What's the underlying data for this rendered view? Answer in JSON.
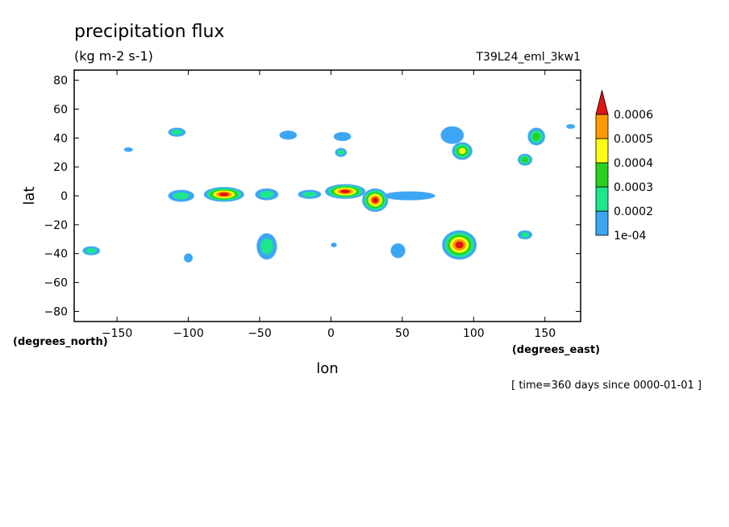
{
  "chart_data": {
    "type": "heatmap",
    "title": "precipitation flux",
    "units": "(kg m-2 s-1)",
    "run_label": "T39L24_eml_3kw1",
    "xlabel": "lon",
    "ylabel": "lat",
    "x_unit_label": "(degrees_east)",
    "y_unit_label": "(degrees_north)",
    "time_label": "[ time=360 days since 0000-01-01 ]",
    "xlim": [
      -180,
      175
    ],
    "ylim": [
      -87,
      87
    ],
    "xticks": [
      -150,
      -100,
      -50,
      0,
      50,
      100,
      150
    ],
    "yticks": [
      -80,
      -60,
      -40,
      -20,
      0,
      20,
      40,
      60,
      80
    ],
    "legend": {
      "placement": "right",
      "levels": [
        "1e-04",
        "0.0002",
        "0.0003",
        "0.0004",
        "0.0005",
        "0.0006"
      ],
      "colors": [
        "#3ca6f5",
        "#1ee68c",
        "#28d21e",
        "#ffff14",
        "#ff9b00",
        "#e11414"
      ]
    },
    "features": [
      {
        "lon": -108,
        "lat": 44,
        "rlon": 6,
        "rlat": 3,
        "level": 2
      },
      {
        "lon": -142,
        "lat": 32,
        "rlon": 3,
        "rlat": 1.5,
        "level": 1
      },
      {
        "lon": -30,
        "lat": 42,
        "rlon": 6,
        "rlat": 3,
        "level": 1
      },
      {
        "lon": 8,
        "lat": 41,
        "rlon": 6,
        "rlat": 3,
        "level": 1
      },
      {
        "lon": 7,
        "lat": 30,
        "rlon": 4,
        "rlat": 3,
        "level": 2
      },
      {
        "lon": 85,
        "lat": 42,
        "rlon": 8,
        "rlat": 6,
        "level": 1
      },
      {
        "lon": 92,
        "lat": 31,
        "rlon": 7,
        "rlat": 6,
        "level": 4
      },
      {
        "lon": 136,
        "lat": 25,
        "rlon": 5,
        "rlat": 4,
        "level": 3
      },
      {
        "lon": 144,
        "lat": 41,
        "rlon": 6,
        "rlat": 6,
        "level": 3
      },
      {
        "lon": 168,
        "lat": 48,
        "rlon": 3,
        "rlat": 1.5,
        "level": 1
      },
      {
        "lon": -75,
        "lat": 1,
        "rlon": 14,
        "rlat": 5,
        "level": 6
      },
      {
        "lon": -105,
        "lat": 0,
        "rlon": 9,
        "rlat": 4,
        "level": 2
      },
      {
        "lon": -45,
        "lat": 1,
        "rlon": 8,
        "rlat": 4,
        "level": 2
      },
      {
        "lon": -15,
        "lat": 1,
        "rlon": 8,
        "rlat": 3,
        "level": 2
      },
      {
        "lon": 10,
        "lat": 3,
        "rlon": 14,
        "rlat": 5,
        "level": 6
      },
      {
        "lon": 31,
        "lat": -3,
        "rlon": 9,
        "rlat": 8,
        "level": 6
      },
      {
        "lon": 55,
        "lat": 0,
        "rlon": 18,
        "rlat": 3,
        "level": 1
      },
      {
        "lon": -45,
        "lat": -35,
        "rlon": 7,
        "rlat": 9,
        "level": 2
      },
      {
        "lon": -168,
        "lat": -38,
        "rlon": 6,
        "rlat": 3,
        "level": 2
      },
      {
        "lon": -100,
        "lat": -43,
        "rlon": 3,
        "rlat": 3,
        "level": 1
      },
      {
        "lon": 2,
        "lat": -34,
        "rlon": 2,
        "rlat": 1.5,
        "level": 1
      },
      {
        "lon": 47,
        "lat": -38,
        "rlon": 5,
        "rlat": 5,
        "level": 1
      },
      {
        "lon": 90,
        "lat": -34,
        "rlon": 12,
        "rlat": 10,
        "level": 6
      },
      {
        "lon": 136,
        "lat": -27,
        "rlon": 5,
        "rlat": 3,
        "level": 2
      }
    ]
  }
}
